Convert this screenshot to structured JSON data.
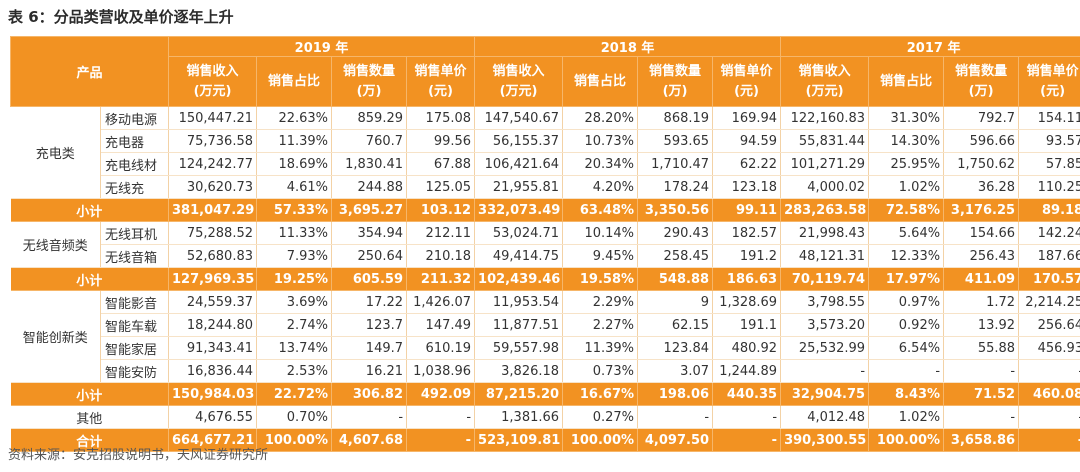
{
  "title": "表 6：分品类营收及单价逐年上升",
  "source": "资料来源：安克招股说明书，天风证券研究所",
  "header": {
    "product": "产品",
    "years": [
      "2019 年",
      "2018 年",
      "2017 年"
    ],
    "metrics": [
      {
        "l1": "销售收入",
        "l2": "(万元)"
      },
      {
        "l1": "销售占比",
        "l2": ""
      },
      {
        "l1": "销售数量",
        "l2": "(万)"
      },
      {
        "l1": "销售单价",
        "l2": "(元)"
      }
    ]
  },
  "categories": [
    {
      "name": "充电类",
      "rows": [
        {
          "name": "移动电源",
          "v": [
            "150,447.21",
            "22.63%",
            "859.29",
            "175.08",
            "147,540.67",
            "28.20%",
            "868.19",
            "169.94",
            "122,160.83",
            "31.30%",
            "792.7",
            "154.11"
          ]
        },
        {
          "name": "充电器",
          "v": [
            "75,736.58",
            "11.39%",
            "760.7",
            "99.56",
            "56,155.37",
            "10.73%",
            "593.65",
            "94.59",
            "55,831.44",
            "14.30%",
            "596.66",
            "93.57"
          ]
        },
        {
          "name": "充电线材",
          "v": [
            "124,242.77",
            "18.69%",
            "1,830.41",
            "67.88",
            "106,421.64",
            "20.34%",
            "1,710.47",
            "62.22",
            "101,271.29",
            "25.95%",
            "1,750.62",
            "57.85"
          ]
        },
        {
          "name": "无线充",
          "v": [
            "30,620.73",
            "4.61%",
            "244.88",
            "125.05",
            "21,955.81",
            "4.20%",
            "178.24",
            "123.18",
            "4,000.02",
            "1.02%",
            "36.28",
            "110.25"
          ]
        }
      ],
      "subtotal": {
        "label": "小计",
        "v": [
          "381,047.29",
          "57.33%",
          "3,695.27",
          "103.12",
          "332,073.49",
          "63.48%",
          "3,350.56",
          "99.11",
          "283,263.58",
          "72.58%",
          "3,176.25",
          "89.18"
        ]
      }
    },
    {
      "name": "无线音频类",
      "rows": [
        {
          "name": "无线耳机",
          "v": [
            "75,288.52",
            "11.33%",
            "354.94",
            "212.11",
            "53,024.71",
            "10.14%",
            "290.43",
            "182.57",
            "21,998.43",
            "5.64%",
            "154.66",
            "142.24"
          ]
        },
        {
          "name": "无线音箱",
          "v": [
            "52,680.83",
            "7.93%",
            "250.64",
            "210.18",
            "49,414.75",
            "9.45%",
            "258.45",
            "191.2",
            "48,121.31",
            "12.33%",
            "256.43",
            "187.66"
          ]
        }
      ],
      "subtotal": {
        "label": "小计",
        "v": [
          "127,969.35",
          "19.25%",
          "605.59",
          "211.32",
          "102,439.46",
          "19.58%",
          "548.88",
          "186.63",
          "70,119.74",
          "17.97%",
          "411.09",
          "170.57"
        ]
      }
    },
    {
      "name": "智能创新类",
      "rows": [
        {
          "name": "智能影音",
          "v": [
            "24,559.37",
            "3.69%",
            "17.22",
            "1,426.07",
            "11,953.54",
            "2.29%",
            "9",
            "1,328.69",
            "3,798.55",
            "0.97%",
            "1.72",
            "2,214.25"
          ]
        },
        {
          "name": "智能车载",
          "v": [
            "18,244.80",
            "2.74%",
            "123.7",
            "147.49",
            "11,877.51",
            "2.27%",
            "62.15",
            "191.1",
            "3,573.20",
            "0.92%",
            "13.92",
            "256.64"
          ]
        },
        {
          "name": "智能家居",
          "v": [
            "91,343.41",
            "13.74%",
            "149.7",
            "610.19",
            "59,557.98",
            "11.39%",
            "123.84",
            "480.92",
            "25,532.99",
            "6.54%",
            "55.88",
            "456.93"
          ]
        },
        {
          "name": "智能安防",
          "v": [
            "16,836.44",
            "2.53%",
            "16.21",
            "1,038.96",
            "3,826.18",
            "0.73%",
            "3.07",
            "1,244.89",
            "-",
            "-",
            "-",
            "-"
          ]
        }
      ],
      "subtotal": {
        "label": "小计",
        "v": [
          "150,984.03",
          "22.72%",
          "306.82",
          "492.09",
          "87,215.20",
          "16.67%",
          "198.06",
          "440.35",
          "32,904.75",
          "8.43%",
          "71.52",
          "460.08"
        ]
      }
    }
  ],
  "other": {
    "label": "其他",
    "v": [
      "4,676.55",
      "0.70%",
      "-",
      "-",
      "1,381.66",
      "0.27%",
      "-",
      "-",
      "4,012.48",
      "1.02%",
      "-",
      "-"
    ]
  },
  "total": {
    "label": "合计",
    "v": [
      "664,677.21",
      "100.00%",
      "4,607.68",
      "-",
      "523,109.81",
      "100.00%",
      "4,097.50",
      "-",
      "390,300.55",
      "100.00%",
      "3,658.86",
      "-"
    ]
  },
  "colors": {
    "accent": "#f29222",
    "text": "#333333"
  }
}
